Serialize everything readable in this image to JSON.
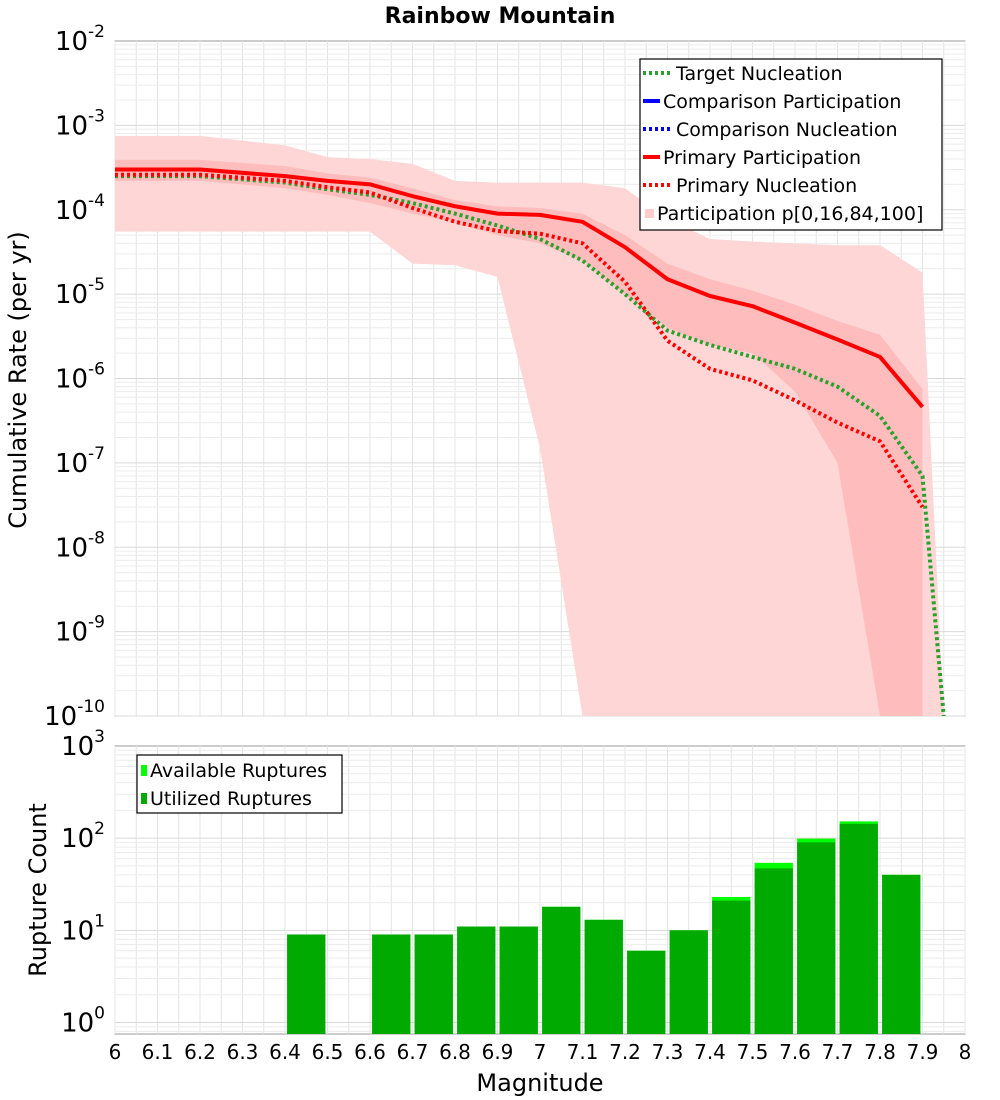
{
  "chart_data": [
    {
      "type": "line",
      "title": "Rainbow Mountain",
      "xlabel": "",
      "ylabel": "Cumulative Rate (per yr)",
      "x_scale": "linear",
      "y_scale": "log",
      "xlim": [
        6,
        8
      ],
      "ylim": [
        1e-10,
        0.01
      ],
      "grid": true,
      "y_ticks": [
        {
          "base": "10",
          "exp": "-10",
          "value": 1e-10
        },
        {
          "base": "10",
          "exp": "-9",
          "value": 1e-09
        },
        {
          "base": "10",
          "exp": "-8",
          "value": 1e-08
        },
        {
          "base": "10",
          "exp": "-7",
          "value": 1e-07
        },
        {
          "base": "10",
          "exp": "-6",
          "value": 1e-06
        },
        {
          "base": "10",
          "exp": "-5",
          "value": 1e-05
        },
        {
          "base": "10",
          "exp": "-4",
          "value": 0.0001
        },
        {
          "base": "10",
          "exp": "-3",
          "value": 0.001
        },
        {
          "base": "10",
          "exp": "-2",
          "value": 0.01
        }
      ],
      "legend": {
        "placement": "top-right",
        "entries": [
          {
            "label": "Target Nucleation",
            "color": "#2ca02c",
            "style": "dotted"
          },
          {
            "label": "Comparison Participation",
            "color": "#0000ff",
            "style": "solid"
          },
          {
            "label": "Comparison Nucleation",
            "color": "#0000ff",
            "style": "dotted"
          },
          {
            "label": "Primary Participation",
            "color": "#ff0000",
            "style": "solid"
          },
          {
            "label": "Primary Nucleation",
            "color": "#ff0000",
            "style": "dotted"
          },
          {
            "label": "Participation p[0,16,84,100]",
            "color": "#ffcccc",
            "style": "band"
          }
        ]
      },
      "bands": [
        {
          "name": "p0-p100",
          "color": "#ffd6d6",
          "x": [
            6.0,
            6.2,
            6.4,
            6.5,
            6.6,
            6.7,
            6.8,
            6.9,
            7.0,
            7.1,
            7.2,
            7.3,
            7.4,
            7.5,
            7.6,
            7.7,
            7.8,
            7.9,
            7.95
          ],
          "upper": [
            0.00075,
            0.00075,
            0.00058,
            0.00042,
            0.0004,
            0.00035,
            0.00022,
            0.00021,
            0.00021,
            0.00021,
            0.00018,
            7.8e-05,
            4.5e-05,
            4.2e-05,
            4e-05,
            3.8e-05,
            3.8e-05,
            1.8e-05,
            1e-10
          ],
          "lower": [
            5.5e-05,
            5.5e-05,
            5.5e-05,
            5.5e-05,
            5.5e-05,
            2.3e-05,
            2.2e-05,
            1.6e-05,
            1.5e-07,
            1e-10,
            1e-10,
            1e-10,
            1e-10,
            1e-10,
            1e-10,
            1e-10,
            1e-10,
            1e-10,
            1e-10
          ]
        },
        {
          "name": "p16-p84",
          "color": "#ffbcbc",
          "x": [
            6.0,
            6.2,
            6.4,
            6.5,
            6.6,
            6.7,
            6.8,
            6.9,
            7.0,
            7.1,
            7.2,
            7.3,
            7.4,
            7.5,
            7.6,
            7.7,
            7.8,
            7.9
          ],
          "upper": [
            0.00039,
            0.00039,
            0.00033,
            0.00027,
            0.00024,
            0.00018,
            0.00013,
            0.00011,
            0.000105,
            9e-05,
            5e-05,
            2.3e-05,
            1.5e-05,
            1.1e-05,
            7.5e-06,
            4.8e-06,
            3.3e-06,
            7.5e-07
          ],
          "lower": [
            0.00022,
            0.00022,
            0.00018,
            0.00015,
            0.00012,
            9e-05,
            7e-05,
            5e-05,
            4e-05,
            2.5e-05,
            1e-05,
            4e-06,
            2.5e-06,
            2e-06,
            7e-07,
            1e-07,
            1e-10,
            1e-10
          ]
        }
      ],
      "series": [
        {
          "name": "Primary Participation",
          "color": "#ff0000",
          "style": "solid",
          "x": [
            6.0,
            6.2,
            6.4,
            6.5,
            6.6,
            6.7,
            6.8,
            6.9,
            7.0,
            7.1,
            7.2,
            7.3,
            7.4,
            7.5,
            7.6,
            7.7,
            7.8,
            7.9
          ],
          "y": [
            0.0003,
            0.0003,
            0.00025,
            0.00022,
            0.0002,
            0.000145,
            0.00011,
            9e-05,
            8.7e-05,
            7.2e-05,
            3.6e-05,
            1.5e-05,
            9.5e-06,
            7.2e-06,
            4.6e-06,
            2.9e-06,
            1.8e-06,
            4.6e-07
          ]
        },
        {
          "name": "Target Nucleation",
          "color": "#2ca02c",
          "style": "dotted",
          "x": [
            6.0,
            6.2,
            6.4,
            6.5,
            6.6,
            6.7,
            6.8,
            6.9,
            7.0,
            7.1,
            7.2,
            7.3,
            7.4,
            7.5,
            7.6,
            7.7,
            7.8,
            7.9,
            7.95
          ],
          "y": [
            0.00025,
            0.00025,
            0.00021,
            0.000175,
            0.00015,
            0.00012,
            9e-05,
            6.5e-05,
            4.5e-05,
            2.5e-05,
            1e-05,
            3.7e-06,
            2.5e-06,
            1.8e-06,
            1.3e-06,
            8e-07,
            3.6e-07,
            7e-08,
            1e-10
          ]
        },
        {
          "name": "Primary Nucleation",
          "color": "#ff0000",
          "style": "dotted",
          "x": [
            6.0,
            6.2,
            6.4,
            6.5,
            6.6,
            6.7,
            6.8,
            6.9,
            7.0,
            7.1,
            7.2,
            7.3,
            7.4,
            7.5,
            7.6,
            7.7,
            7.8,
            7.9
          ],
          "y": [
            0.00026,
            0.00026,
            0.00022,
            0.000185,
            0.00016,
            0.000105,
            7.2e-05,
            5.6e-05,
            5.2e-05,
            4e-05,
            1.4e-05,
            2.8e-06,
            1.3e-06,
            9.5e-07,
            5.5e-07,
            3e-07,
            1.8e-07,
            3e-08
          ]
        }
      ]
    },
    {
      "type": "bar",
      "title": "",
      "xlabel": "Magnitude",
      "ylabel": "Rupture Count",
      "y_scale": "log",
      "xlim": [
        6,
        8
      ],
      "ylim": [
        0.75,
        1000
      ],
      "grid": true,
      "bar_width": 0.09,
      "x_ticks": [
        "6",
        "6.1",
        "6.2",
        "6.3",
        "6.4",
        "6.5",
        "6.6",
        "6.7",
        "6.8",
        "6.9",
        "7",
        "7.1",
        "7.2",
        "7.3",
        "7.4",
        "7.5",
        "7.6",
        "7.7",
        "7.8",
        "7.9",
        "8"
      ],
      "y_ticks": [
        {
          "base": "10",
          "exp": "0",
          "value": 1
        },
        {
          "base": "10",
          "exp": "1",
          "value": 10
        },
        {
          "base": "10",
          "exp": "2",
          "value": 100
        },
        {
          "base": "10",
          "exp": "3",
          "value": 1000
        }
      ],
      "legend": {
        "placement": "top-left",
        "entries": [
          {
            "label": "Available Ruptures",
            "color": "#00ff00"
          },
          {
            "label": "Utilized Ruptures",
            "color": "#00aa00"
          }
        ]
      },
      "categories": [
        6.45,
        6.65,
        6.75,
        6.85,
        6.95,
        7.05,
        7.15,
        7.25,
        7.35,
        7.45,
        7.55,
        7.65,
        7.75,
        7.85
      ],
      "series": [
        {
          "name": "Available Ruptures",
          "color": "#00ff00",
          "values": [
            9,
            9,
            9,
            11,
            11,
            18,
            13,
            6,
            10,
            23,
            54,
            99,
            152,
            40
          ]
        },
        {
          "name": "Utilized Ruptures",
          "color": "#00aa00",
          "values": [
            9,
            9,
            9,
            11,
            11,
            18,
            13,
            6,
            10,
            21,
            47,
            90,
            143,
            40
          ]
        }
      ]
    }
  ]
}
